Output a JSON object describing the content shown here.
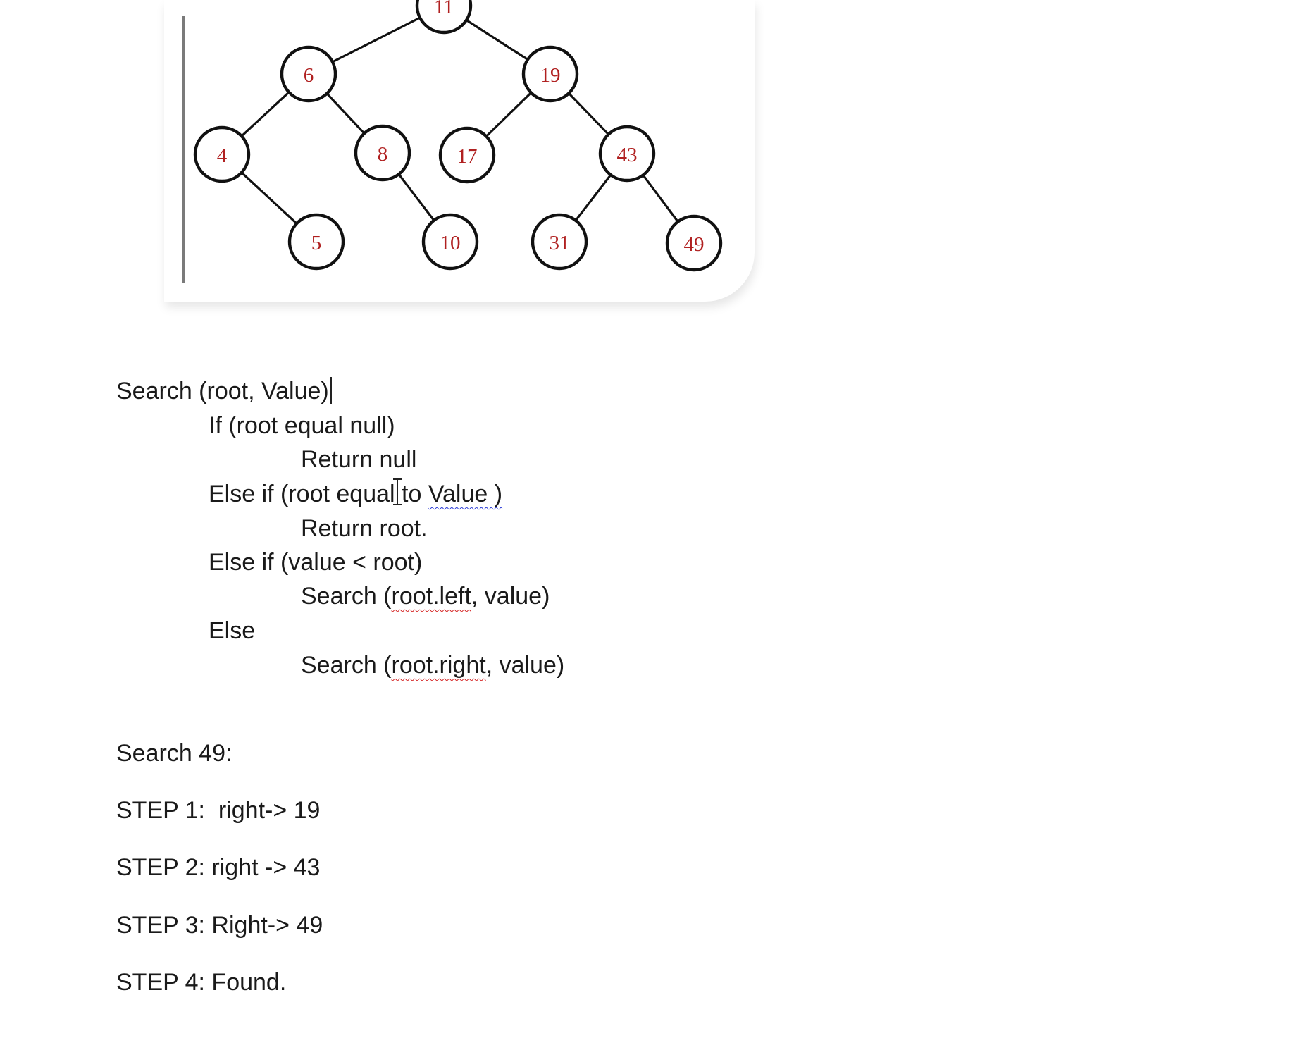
{
  "tree": {
    "nodes": [
      {
        "id": "n11",
        "label": "11"
      },
      {
        "id": "n6",
        "label": "6"
      },
      {
        "id": "n19",
        "label": "19"
      },
      {
        "id": "n4",
        "label": "4"
      },
      {
        "id": "n8",
        "label": "8"
      },
      {
        "id": "n17",
        "label": "17"
      },
      {
        "id": "n43",
        "label": "43"
      },
      {
        "id": "n5",
        "label": "5"
      },
      {
        "id": "n10",
        "label": "10"
      },
      {
        "id": "n31",
        "label": "31"
      },
      {
        "id": "n49",
        "label": "49"
      }
    ],
    "edges": [
      [
        "n11",
        "n6"
      ],
      [
        "n11",
        "n19"
      ],
      [
        "n6",
        "n4"
      ],
      [
        "n6",
        "n8"
      ],
      [
        "n19",
        "n17"
      ],
      [
        "n19",
        "n43"
      ],
      [
        "n4",
        "n5"
      ],
      [
        "n8",
        "n10"
      ],
      [
        "n43",
        "n31"
      ],
      [
        "n43",
        "n49"
      ]
    ],
    "node_color": "#b02020"
  },
  "algorithm": {
    "signature": "Search (root, Value)",
    "if_line": "If (root equal null)",
    "return_null": "Return null",
    "elseif_equal_pre": "Else if (root equal to ",
    "elseif_equal_value": "Value )",
    "return_root": "Return root.",
    "elseif_less": "Else if (value < root)",
    "search_left_pre": "Search (",
    "search_left_word": "root.left",
    "search_left_post": ", value)",
    "else_line": "Else",
    "search_right_pre": "Search (",
    "search_right_word": "root.right",
    "search_right_post": ", value)"
  },
  "example": {
    "heading": "Search 49:",
    "steps": [
      "STEP 1:  right-> 19",
      "STEP 2: right -> 43",
      "STEP 3: Right-> 49",
      "STEP 4: Found."
    ]
  }
}
